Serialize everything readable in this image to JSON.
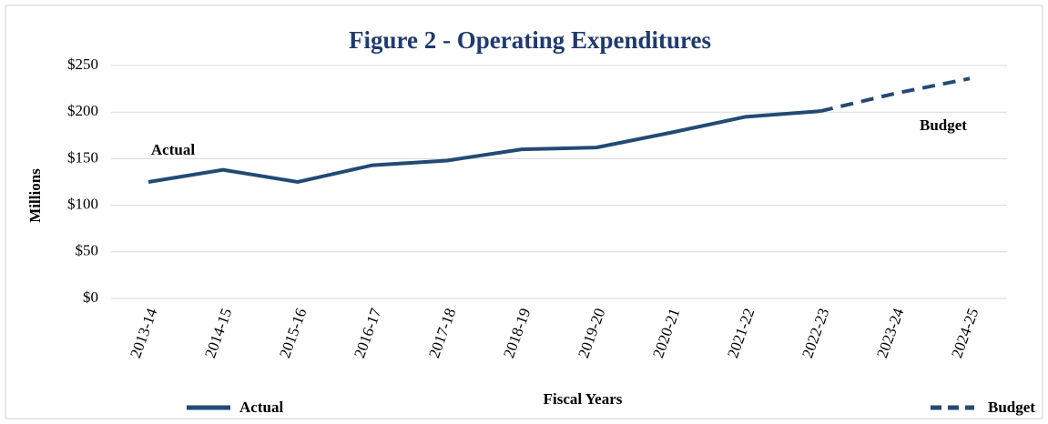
{
  "chart_data": {
    "type": "line",
    "title": "Figure 2 - Operating Expenditures",
    "x_label": "Fiscal Years",
    "y_label": "Millions",
    "categories": [
      "2013-14",
      "2014-15",
      "2015-16",
      "2016-17",
      "2017-18",
      "2018-19",
      "2019-20",
      "2020-21",
      "2021-22",
      "2022-23",
      "2023-24",
      "2024-25"
    ],
    "series": [
      {
        "name": "Actual",
        "color": "#234a75",
        "style": "solid",
        "values": [
          125,
          138,
          125,
          143,
          148,
          160,
          162,
          178,
          195,
          201,
          null,
          null
        ]
      },
      {
        "name": "Budget",
        "color": "#234a75",
        "style": "dashed",
        "values": [
          null,
          null,
          null,
          null,
          null,
          null,
          null,
          null,
          null,
          201,
          220,
          236
        ]
      }
    ],
    "annotations": [
      "Actual",
      "Budget"
    ],
    "ylim": [
      0,
      250
    ],
    "yticks": [
      {
        "value": 0,
        "label": "$0"
      },
      {
        "value": 50,
        "label": "$50"
      },
      {
        "value": 100,
        "label": "$100"
      },
      {
        "value": 150,
        "label": "$150"
      },
      {
        "value": 200,
        "label": "$200"
      },
      {
        "value": 250,
        "label": "$250"
      }
    ],
    "grid": true,
    "legend": "bottom"
  }
}
